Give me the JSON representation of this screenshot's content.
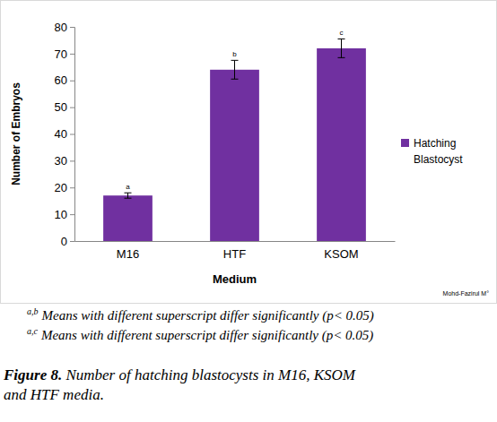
{
  "chart_data": {
    "type": "bar",
    "categories": [
      "M16",
      "HTF",
      "KSOM"
    ],
    "series": [
      {
        "name": "Hatching Blastocyst",
        "color": "#7030a0",
        "values": [
          17,
          64,
          72
        ],
        "errors": [
          1,
          3.5,
          3.5
        ],
        "labels": [
          "a",
          "b",
          "c"
        ]
      }
    ],
    "x_label": "Medium",
    "y_label": "Number of Embryos",
    "ylim": [
      0,
      80
    ],
    "yticks": [
      0,
      10,
      20,
      30,
      40,
      50,
      60,
      70,
      80
    ],
    "legend": "right",
    "credit": "Mohd-Fazirul M°"
  },
  "footnotes": [
    {
      "superscript": "a,b",
      "text": "Means with different superscript differ significantly (p< 0.05)"
    },
    {
      "superscript": "a,c",
      "text": "Means with different superscript differ significantly (p< 0.05)"
    }
  ],
  "caption": {
    "label": "Figure 8.",
    "text": "Number of hatching blastocysts in M16, KSOM and HTF media."
  }
}
